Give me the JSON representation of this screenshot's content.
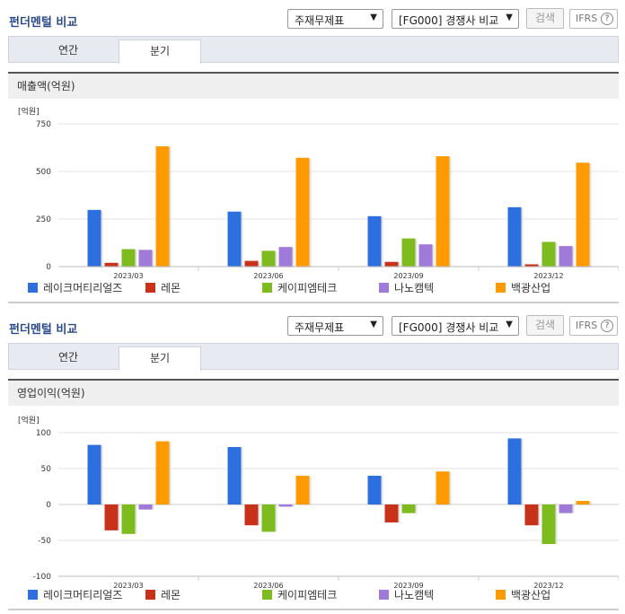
{
  "sections": [
    {
      "title": "펀더멘털 비교",
      "select_statement": "주재무제표",
      "select_compare": "[FG000] 경쟁사 비교",
      "search_label": "검색",
      "ifrs_label": "IFRS",
      "tabs": [
        {
          "label": "연간"
        },
        {
          "label": "분기"
        }
      ],
      "active_tab": "분기",
      "chart_header": "매출액(억원)",
      "unit": "[억원]"
    },
    {
      "title": "펀더멘털 비교",
      "select_statement": "주재무제표",
      "select_compare": "[FG000] 경쟁사 비교",
      "search_label": "검색",
      "ifrs_label": "IFRS",
      "tabs": [
        {
          "label": "연간"
        },
        {
          "label": "분기"
        }
      ],
      "active_tab": "분기",
      "chart_header": "영업이익(억원)",
      "unit": "[억원]"
    }
  ],
  "icons": {
    "dropdown": "chevron-down-icon",
    "help": "question-circle-icon"
  },
  "colors": {
    "series": [
      "#2d6fdf",
      "#c8321a",
      "#7dbb1e",
      "#a07ad8",
      "#ff9a00"
    ],
    "title": "#2b4a8a"
  },
  "chart_data": [
    {
      "type": "bar",
      "title": "매출액(억원)",
      "ylabel": "[억원]",
      "categories": [
        "2023/03",
        "2023/06",
        "2023/09",
        "2023/12"
      ],
      "ylim": [
        0,
        750
      ],
      "yticks": [
        0,
        250,
        500,
        750
      ],
      "grid": true,
      "legend_position": "bottom",
      "series": [
        {
          "name": "레이크머티리얼즈",
          "values": [
            298,
            289,
            265,
            312
          ]
        },
        {
          "name": "레몬",
          "values": [
            20,
            30,
            25,
            12
          ]
        },
        {
          "name": "케이피엠테크",
          "values": [
            92,
            83,
            148,
            130
          ]
        },
        {
          "name": "나노캠텍",
          "values": [
            88,
            103,
            117,
            108
          ]
        },
        {
          "name": "백광산업",
          "values": [
            632,
            572,
            580,
            546
          ]
        }
      ]
    },
    {
      "type": "bar",
      "title": "영업이익(억원)",
      "ylabel": "[억원]",
      "categories": [
        "2023/03",
        "2023/06",
        "2023/09",
        "2023/12"
      ],
      "ylim": [
        -100,
        100
      ],
      "yticks": [
        -100,
        -50,
        0,
        50,
        100
      ],
      "grid": true,
      "legend_position": "bottom",
      "series": [
        {
          "name": "레이크머티리얼즈",
          "values": [
            83,
            80,
            40,
            92
          ]
        },
        {
          "name": "레몬",
          "values": [
            -36,
            -29,
            -25,
            -29
          ]
        },
        {
          "name": "케이피엠테크",
          "values": [
            -41,
            -38,
            -12,
            -55
          ]
        },
        {
          "name": "나노캠텍",
          "values": [
            -7,
            -3,
            0,
            -12
          ]
        },
        {
          "name": "백광산업",
          "values": [
            88,
            40,
            46,
            5
          ]
        }
      ]
    }
  ]
}
